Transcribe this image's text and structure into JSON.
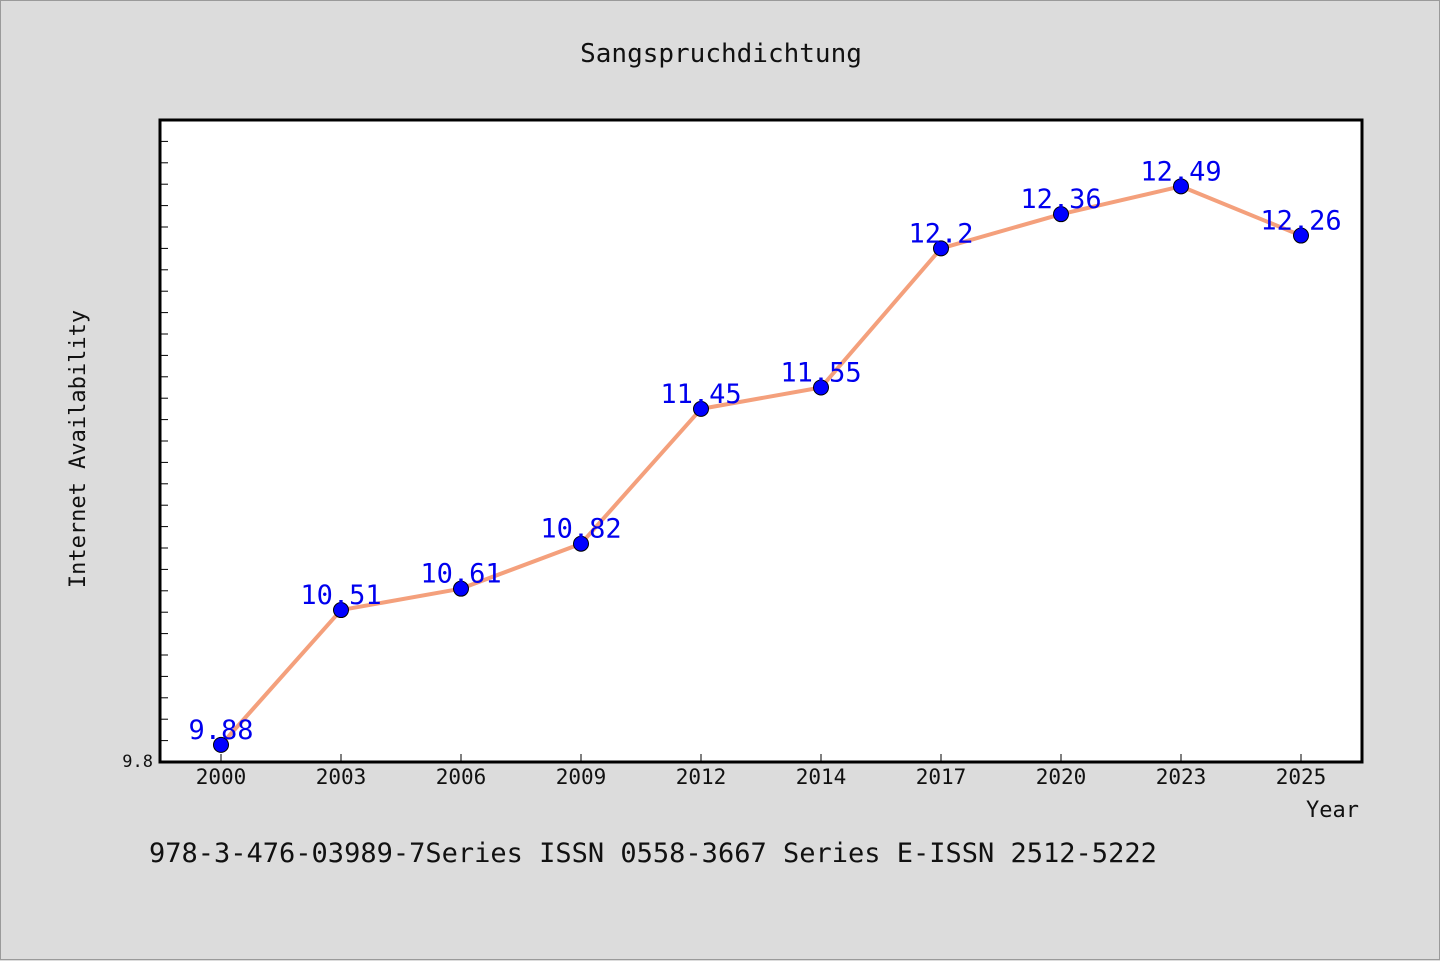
{
  "chart_data": {
    "type": "line",
    "title": "Sangspruchdichtung",
    "xlabel": "Year",
    "ylabel": "Internet Availability",
    "categories": [
      "2000",
      "2003",
      "2006",
      "2009",
      "2012",
      "2014",
      "2017",
      "2020",
      "2023",
      "2025"
    ],
    "values": [
      9.88,
      10.51,
      10.61,
      10.82,
      11.45,
      11.55,
      12.2,
      12.36,
      12.49,
      12.26
    ],
    "data_labels": [
      "9.88",
      "10.51",
      "10.61",
      "10.82",
      "11.45",
      "11.55",
      "12.2",
      "12.36",
      "12.49",
      "12.26"
    ],
    "ylim": [
      9.8,
      12.8
    ],
    "yticks_labeled": [
      "9.8"
    ],
    "grid": false,
    "line_color": "#f4a07c",
    "marker_color": "#0000ff",
    "label_color": "#0000ee"
  },
  "caption": "978-3-476-03989-7Series ISSN 0558-3667 Series E-ISSN 2512-5222"
}
